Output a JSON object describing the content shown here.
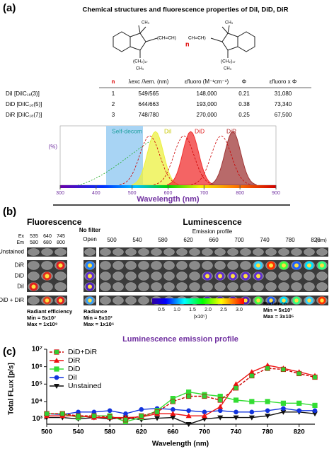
{
  "panel_a": {
    "label": "(a)",
    "title": "Chemical structures and fluorescence properties of DiI, DiD, DiR",
    "structure": {
      "bridge_left": "(CH=CH)",
      "bridge_right": "CH=CH)",
      "repeat": "n",
      "substituent": "(CH₂)₁₇",
      "methyl": "CH₃"
    },
    "table": {
      "headers": [
        "n",
        "λexc /λem. (nm)",
        "εfluoro (M⁻¹cm⁻¹)",
        "Φ",
        "εfluoro x Φ"
      ],
      "rows": [
        [
          "DiI [DiIC₁₈(3)]",
          "1",
          "549/565",
          "148,000",
          "0.21",
          "31,080"
        ],
        [
          "DiD [DiIC₁₈(5)]",
          "2",
          "644/663",
          "193,000",
          "0.38",
          "73,340"
        ],
        [
          "DiR [DiIC₁₈(7)]",
          "3",
          "748/780",
          "270,000",
          "0.25",
          "67,500"
        ]
      ]
    },
    "spectrum": {
      "labels": [
        "Self-decom",
        "DiI",
        "DiD",
        "DiR"
      ],
      "ylabel": "(%)",
      "xlabel": "Wavelength (nm)",
      "xlim": [
        300,
        900
      ],
      "xticks": [
        300,
        400,
        500,
        600,
        700,
        800,
        900
      ]
    }
  },
  "panel_b": {
    "label": "(b)",
    "fluorescence": "Fluorescence",
    "luminescence": "Luminescence",
    "ex_label": "Ex",
    "em_label": "Em",
    "ex": [
      "535",
      "640",
      "745"
    ],
    "em": [
      "580",
      "680",
      "800"
    ],
    "rows": [
      "Unstained",
      "DiR",
      "DiD",
      "DiI",
      "DiD + DiR"
    ],
    "no_filter": "No filter",
    "open": "Open",
    "emission_profile": "Emission profile",
    "wavelengths": [
      "500",
      "540",
      "580",
      "620",
      "660",
      "700",
      "740",
      "780",
      "820"
    ],
    "unit": "(nm)",
    "caption_fluo": [
      "Radiant efficiency",
      "Min = 5x10⁷",
      "Max = 1x10⁸"
    ],
    "caption_open": [
      "Radiance",
      "Min = 5x10³",
      "Max = 1x10⁶"
    ],
    "caption_lum": [
      "Radiance",
      "Min = 5x10³",
      "Max = 3x10⁵"
    ],
    "colorbar": {
      "ticks": [
        "0.5",
        "1.0",
        "1.5",
        "2.0",
        "2.5",
        "3.0"
      ],
      "unit": "(x10⁵)"
    }
  },
  "chart_data": {
    "type": "line",
    "label": "(c)",
    "title": "Luminescence emission profile",
    "xlabel": "Wavelength (nm)",
    "ylabel": "Total FLux [p/s]",
    "x": [
      500,
      520,
      540,
      560,
      580,
      600,
      620,
      640,
      660,
      680,
      700,
      720,
      740,
      760,
      780,
      800,
      820,
      840
    ],
    "xlim": [
      500,
      840
    ],
    "xticks": [
      500,
      540,
      580,
      620,
      660,
      700,
      740,
      780,
      820
    ],
    "ylim": [
      500,
      10000000
    ],
    "yscale": "log",
    "yticks": [
      {
        "value": 1000,
        "label": "10³"
      },
      {
        "value": 10000,
        "label": "10⁴"
      },
      {
        "value": 100000,
        "label": "10⁵"
      },
      {
        "value": 1000000,
        "label": "10⁶"
      },
      {
        "value": 10000000,
        "label": "10⁷"
      }
    ],
    "legend": "upper left",
    "series": [
      {
        "name": "DiD+DiR",
        "color": "#cc0000",
        "marker": "square",
        "marker_color": "#33cc33",
        "dashed": true,
        "values": [
          2000,
          2000,
          1500,
          1500,
          1300,
          900,
          1500,
          2500,
          10000,
          20000,
          20000,
          12000,
          60000,
          300000,
          800000,
          700000,
          400000,
          250000
        ]
      },
      {
        "name": "DiR",
        "color": "#ee1111",
        "marker": "triangle",
        "marker_color": "#ee1111",
        "dashed": false,
        "values": [
          1500,
          1500,
          1500,
          1200,
          1200,
          1200,
          1300,
          2000,
          2000,
          1500,
          1500,
          5000,
          100000,
          500000,
          1200000,
          800000,
          500000,
          300000
        ]
      },
      {
        "name": "DiD",
        "color": "#33dd33",
        "marker": "square",
        "marker_color": "#33dd33",
        "dashed": false,
        "values": [
          2000,
          2000,
          1200,
          1500,
          1500,
          700,
          1200,
          3000,
          15000,
          35000,
          25000,
          20000,
          12000,
          10000,
          10000,
          8000,
          8000,
          6000
        ]
      },
      {
        "name": "DiI",
        "color": "#1133dd",
        "marker": "circle",
        "marker_color": "#1133dd",
        "dashed": false,
        "values": [
          2000,
          1800,
          2500,
          2500,
          3000,
          2000,
          3500,
          4000,
          3500,
          3000,
          2500,
          3000,
          2500,
          2500,
          3000,
          4000,
          3000,
          3000
        ]
      },
      {
        "name": "Unstained",
        "color": "#111111",
        "marker": "triangle-down",
        "marker_color": "#111111",
        "dashed": false,
        "values": [
          1200,
          1200,
          1000,
          1200,
          1000,
          1200,
          900,
          1100,
          1200,
          500,
          1000,
          1200,
          1200,
          1200,
          1500,
          2500,
          2500,
          2000
        ]
      }
    ]
  }
}
